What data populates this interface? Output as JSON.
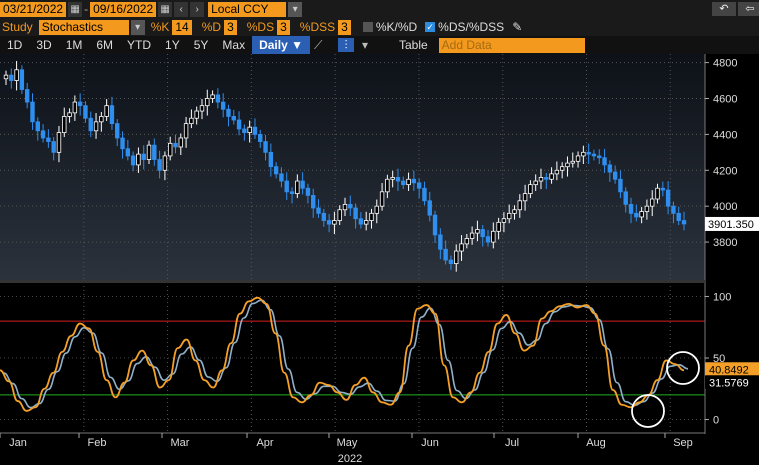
{
  "toolbar": {
    "start_date": "03/21/2022",
    "end_date": "09/16/2022",
    "date_sep": "-",
    "currency": "Local CCY",
    "study_label": "Study",
    "study_value": "Stochastics",
    "k_label": "%K",
    "k_value": "14",
    "d_label": "%D",
    "d_value": "3",
    "ds_label": "%DS",
    "ds_value": "3",
    "dss_label": "%DSS",
    "dss_value": "3",
    "kd_toggle": "%K/%D",
    "dsdss_toggle": "%DS/%DSS",
    "periods": [
      "1D",
      "3D",
      "1M",
      "6M",
      "YTD",
      "1Y",
      "5Y",
      "Max"
    ],
    "frequency": "Daily",
    "table_label": "Table",
    "add_data_placeholder": "Add Data"
  },
  "colors": {
    "accent": "#f39a1e",
    "up": "#ffffff",
    "down": "#2e8ff0",
    "ds_line": "#f4a028",
    "dss_line": "#8fb0c8",
    "overbought": "#d62020",
    "oversold": "#22b022"
  },
  "chart_data": {
    "type": "candlestick",
    "price_axis": {
      "ticks": [
        3800,
        4000,
        4200,
        4400,
        4600,
        4800
      ],
      "last_value": "3901.350"
    },
    "stoch_axis": {
      "ticks": [
        0,
        50,
        100
      ],
      "ds_last": "40.8492",
      "dss_last": "31.5769",
      "overbought": 80,
      "oversold": 20
    },
    "xaxis": {
      "months": [
        "Jan",
        "Feb",
        "Mar",
        "Apr",
        "May",
        "Jun",
        "Jul",
        "Aug",
        "Sep"
      ],
      "year": "2022"
    },
    "price_series": [
      4730,
      4700,
      4760,
      4650,
      4580,
      4470,
      4420,
      4380,
      4360,
      4300,
      4410,
      4500,
      4520,
      4580,
      4560,
      4490,
      4420,
      4470,
      4500,
      4560,
      4460,
      4380,
      4320,
      4280,
      4230,
      4290,
      4260,
      4340,
      4260,
      4200,
      4280,
      4350,
      4330,
      4380,
      4460,
      4490,
      4530,
      4560,
      4600,
      4620,
      4580,
      4540,
      4500,
      4480,
      4430,
      4410,
      4440,
      4400,
      4360,
      4300,
      4220,
      4180,
      4140,
      4080,
      4070,
      4140,
      4100,
      4060,
      3990,
      3960,
      3920,
      3900,
      3920,
      3980,
      4010,
      3990,
      3930,
      3900,
      3920,
      3960,
      4000,
      4080,
      4150,
      4160,
      4140,
      4120,
      4150,
      4130,
      4100,
      4030,
      3950,
      3840,
      3760,
      3700,
      3680,
      3750,
      3790,
      3820,
      3850,
      3870,
      3830,
      3800,
      3860,
      3910,
      3930,
      3960,
      3980,
      4030,
      4070,
      4120,
      4140,
      4160,
      4150,
      4180,
      4200,
      4220,
      4240,
      4250,
      4280,
      4300,
      4290,
      4280,
      4270,
      4230,
      4190,
      4150,
      4080,
      4010,
      3960,
      3940,
      3970,
      4000,
      4040,
      4100,
      4090,
      4000,
      3960,
      3920,
      3901
    ],
    "ds_series": [
      40,
      31,
      15,
      7,
      10,
      25,
      38,
      55,
      68,
      78,
      74,
      55,
      32,
      18,
      30,
      48,
      56,
      44,
      26,
      32,
      58,
      65,
      48,
      32,
      26,
      40,
      62,
      86,
      96,
      99,
      94,
      70,
      38,
      18,
      14,
      20,
      30,
      28,
      22,
      16,
      28,
      34,
      22,
      14,
      12,
      22,
      60,
      90,
      93,
      86,
      44,
      18,
      14,
      22,
      38,
      55,
      78,
      85,
      70,
      56,
      60,
      82,
      88,
      92,
      94,
      91,
      93,
      86,
      60,
      24,
      12,
      10,
      14,
      20,
      32,
      48,
      45,
      40
    ],
    "circles": [
      {
        "label": "oversold-turn"
      },
      {
        "label": "overbought-approach"
      }
    ]
  }
}
